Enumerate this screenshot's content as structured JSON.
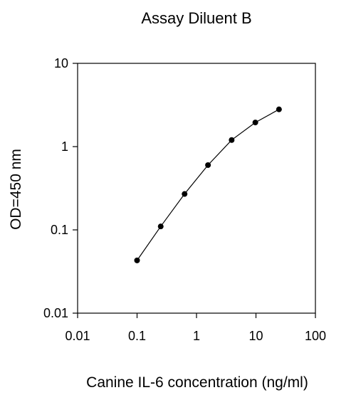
{
  "chart_data": {
    "type": "scatter",
    "title": "Assay Diluent B",
    "xlabel": "Canine IL-6 concentration (ng/ml)",
    "ylabel": "OD=450 nm",
    "x_scale": "log",
    "y_scale": "log",
    "xlim": [
      0.01,
      100
    ],
    "ylim": [
      0.01,
      10
    ],
    "x_ticks": [
      0.01,
      0.1,
      1,
      10,
      100
    ],
    "x_tick_labels": [
      "0.01",
      "0.1",
      "1",
      "10",
      "100"
    ],
    "y_ticks": [
      0.01,
      0.1,
      1,
      10
    ],
    "y_tick_labels": [
      "0.01",
      "0.1",
      "1",
      "10"
    ],
    "grid": false,
    "series": [
      {
        "x": [
          0.1,
          0.25,
          0.63,
          1.56,
          3.9,
          9.76,
          24.4
        ],
        "y": [
          0.043,
          0.11,
          0.27,
          0.6,
          1.2,
          1.95,
          2.8
        ],
        "color": "#000000"
      }
    ]
  }
}
